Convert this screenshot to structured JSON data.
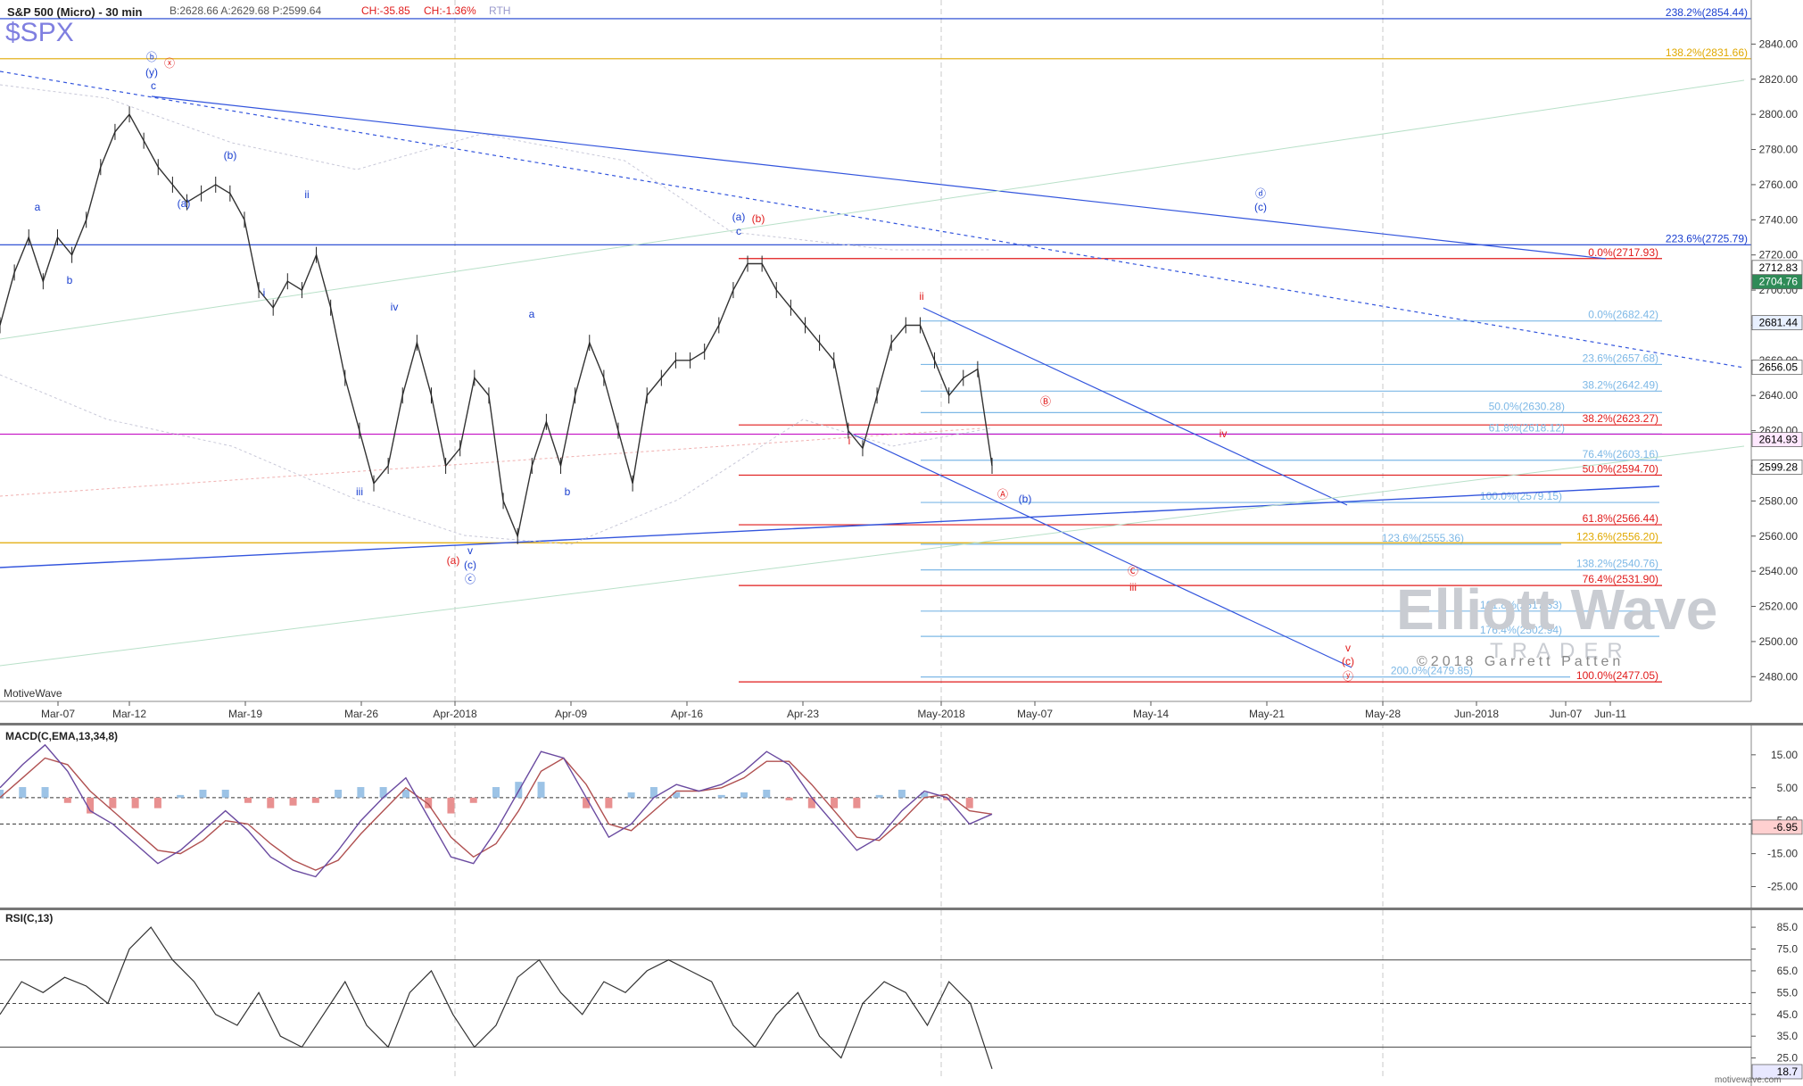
{
  "header": {
    "title": "S&P 500 (Micro) - 30 min",
    "stats": "B:2628.66  A:2629.68  P:2599.64",
    "change_abs": "CH:-35.85",
    "change_pct": "CH:-1.36%",
    "session": "RTH",
    "symbol": "$SPX",
    "footer_left": "MotiveWave",
    "footer_right": "motivewave.com"
  },
  "watermark": {
    "line1": "Elliott Wave",
    "line2": "TRADER",
    "copyright": "©2018 Garrett Patten"
  },
  "colors": {
    "blue": "#1a3fcf",
    "red": "#e01a1a",
    "orange": "#e0a800",
    "magenta": "#c000c0",
    "lightblue": "#7db8e6",
    "axisbg": "#ffffff",
    "text": "#222222"
  },
  "chart_data": [
    {
      "type": "line",
      "title": "S&P 500 (Micro) - 30 min",
      "ylim": [
        2470,
        2860
      ],
      "y_ticks": [
        2480,
        2500,
        2520,
        2540,
        2560,
        2580,
        2600,
        2620,
        2640,
        2660,
        2680,
        2700,
        2720,
        2740,
        2760,
        2780,
        2800,
        2820,
        2840
      ],
      "x_tick_labels": [
        "Mar-07",
        "Mar-12",
        "Mar-19",
        "Mar-26",
        "Apr-2018",
        "Apr-09",
        "Apr-16",
        "Apr-23",
        "May-2018",
        "May-07",
        "May-14",
        "May-21",
        "May-28",
        "Jun-2018",
        "Jun-07",
        "Jun-11"
      ],
      "series": [
        {
          "values": [
            2680,
            2710,
            2730,
            2705,
            2730,
            2720,
            2740,
            2770,
            2790,
            2800,
            2785,
            2770,
            2760,
            2750,
            2755,
            2760,
            2755,
            2740,
            2700,
            2690,
            2705,
            2700,
            2720,
            2690,
            2650,
            2620,
            2590,
            2600,
            2640,
            2670,
            2640,
            2600,
            2610,
            2650,
            2640,
            2580,
            2560,
            2600,
            2625,
            2600,
            2640,
            2670,
            2650,
            2620,
            2590,
            2640,
            2650,
            2660,
            2660,
            2665,
            2680,
            2700,
            2715,
            2715,
            2700,
            2690,
            2680,
            2670,
            2660,
            2620,
            2610,
            2640,
            2670,
            2680,
            2680,
            2660,
            2640,
            2650,
            2655,
            2600
          ]
        }
      ],
      "price_tags": [
        {
          "value": "2712.83",
          "bg": "#ffffff",
          "fg": "#000000"
        },
        {
          "value": "2704.76",
          "bg": "#2e8b57",
          "fg": "#ffffff"
        },
        {
          "value": "2681.44",
          "bg": "#e8f0ff",
          "fg": "#000000"
        },
        {
          "value": "2656.05",
          "bg": "#ffffff",
          "fg": "#000000"
        },
        {
          "value": "2614.93",
          "bg": "#ffe8ff",
          "fg": "#000000"
        },
        {
          "value": "2599.28",
          "bg": "#ffffff",
          "fg": "#000000"
        }
      ],
      "levels": [
        {
          "label": "238.2%(2854.44)",
          "value": 2854.44,
          "color": "#1a3fcf"
        },
        {
          "label": "138.2%(2831.66)",
          "value": 2831.66,
          "color": "#e0a800"
        },
        {
          "label": "223.6%(2725.79)",
          "value": 2725.79,
          "color": "#1a3fcf"
        },
        {
          "label": "0.0%(2717.93)",
          "value": 2717.93,
          "color": "#e01a1a"
        },
        {
          "label": "0.0%(2682.42)",
          "value": 2682.42,
          "color": "#7db8e6"
        },
        {
          "label": "23.6%(2657.68)",
          "value": 2657.68,
          "color": "#7db8e6"
        },
        {
          "label": "38.2%(2642.49)",
          "value": 2642.49,
          "color": "#7db8e6"
        },
        {
          "label": "50.0%(2630.28)",
          "value": 2630.28,
          "color": "#7db8e6"
        },
        {
          "label": "38.2%(2623.27)",
          "value": 2623.27,
          "color": "#e01a1a"
        },
        {
          "label": "61.8%(2618.12)",
          "value": 2618.12,
          "color": "#7db8e6"
        },
        {
          "label": "76.4%(2603.16)",
          "value": 2603.16,
          "color": "#7db8e6"
        },
        {
          "label": "50.0%(2594.70)",
          "value": 2594.7,
          "color": "#e01a1a"
        },
        {
          "label": "100.0%(2579.15)",
          "value": 2579.15,
          "color": "#7db8e6"
        },
        {
          "label": "61.8%(2566.44)",
          "value": 2566.44,
          "color": "#e01a1a"
        },
        {
          "label": "123.6%(2555.36)",
          "value": 2555.36,
          "color": "#7db8e6"
        },
        {
          "label": "123.6%(2556.20)",
          "value": 2556.2,
          "color": "#e0a800"
        },
        {
          "label": "138.2%(2540.76)",
          "value": 2540.76,
          "color": "#7db8e6"
        },
        {
          "label": "76.4%(2531.90)",
          "value": 2531.9,
          "color": "#e01a1a"
        },
        {
          "label": "161.8%(2517.33)",
          "value": 2517.33,
          "color": "#7db8e6"
        },
        {
          "label": "176.4%(2502.94)",
          "value": 2502.94,
          "color": "#7db8e6"
        },
        {
          "label": "200.0%(2479.85)",
          "value": 2479.85,
          "color": "#7db8e6"
        },
        {
          "label": "100.0%(2477.05)",
          "value": 2477.05,
          "color": "#e01a1a"
        }
      ],
      "wave_labels": [
        {
          "text": "ⓑ",
          "color": "#1a3fcf"
        },
        {
          "text": "(y)",
          "color": "#1a3fcf"
        },
        {
          "text": "ⓧ",
          "color": "#e01a1a"
        },
        {
          "text": "c",
          "color": "#1a3fcf"
        },
        {
          "text": "a",
          "color": "#1a3fcf"
        },
        {
          "text": "b",
          "color": "#1a3fcf"
        },
        {
          "text": "(b)",
          "color": "#1a3fcf"
        },
        {
          "text": "(a)",
          "color": "#1a3fcf"
        },
        {
          "text": "ii",
          "color": "#1a3fcf"
        },
        {
          "text": "i",
          "color": "#1a3fcf"
        },
        {
          "text": "iv",
          "color": "#1a3fcf"
        },
        {
          "text": "iii",
          "color": "#1a3fcf"
        },
        {
          "text": "a",
          "color": "#1a3fcf"
        },
        {
          "text": "b",
          "color": "#1a3fcf"
        },
        {
          "text": "v",
          "color": "#1a3fcf"
        },
        {
          "text": "(c)",
          "color": "#1a3fcf"
        },
        {
          "text": "ⓒ",
          "color": "#1a3fcf"
        },
        {
          "text": "(a)",
          "color": "#e01a1a"
        },
        {
          "text": "(a)",
          "color": "#1a3fcf"
        },
        {
          "text": "(b)",
          "color": "#e01a1a"
        },
        {
          "text": "c",
          "color": "#1a3fcf"
        },
        {
          "text": "ii",
          "color": "#e01a1a"
        },
        {
          "text": "i",
          "color": "#e01a1a"
        },
        {
          "text": "Ⓑ",
          "color": "#e01a1a"
        },
        {
          "text": "Ⓐ",
          "color": "#e01a1a"
        },
        {
          "text": "(b)",
          "color": "#1a3fcf"
        },
        {
          "text": "iv",
          "color": "#e01a1a"
        },
        {
          "text": "Ⓒ",
          "color": "#e01a1a"
        },
        {
          "text": "iii",
          "color": "#e01a1a"
        },
        {
          "text": "v",
          "color": "#e01a1a"
        },
        {
          "text": "(c)",
          "color": "#e01a1a"
        },
        {
          "text": "ⓨ",
          "color": "#e01a1a"
        },
        {
          "text": "ⓓ",
          "color": "#1a3fcf"
        },
        {
          "text": "(c)",
          "color": "#1a3fcf"
        }
      ]
    },
    {
      "type": "line",
      "title": "MACD(C,EMA,13,34,8)",
      "ylim": [
        -30,
        22
      ],
      "y_ticks": [
        15.0,
        5.0,
        -5.0,
        -15.0,
        -25.0
      ],
      "y_tick_labels": [
        "15.00",
        "5.00",
        "-5.00",
        "-15.00",
        "-25.00"
      ],
      "current_tag": "-6.95",
      "series": [
        {
          "name": "MACD",
          "values": [
            5,
            12,
            18,
            10,
            -2,
            -6,
            -12,
            -18,
            -14,
            -8,
            -2,
            -8,
            -16,
            -20,
            -22,
            -14,
            -5,
            2,
            8,
            -4,
            -16,
            -18,
            -8,
            4,
            16,
            14,
            2,
            -10,
            -6,
            2,
            6,
            4,
            6,
            10,
            16,
            12,
            2,
            -6,
            -14,
            -10,
            -2,
            4,
            2,
            -6,
            -3
          ]
        },
        {
          "name": "Signal",
          "values": [
            2,
            8,
            14,
            12,
            4,
            -2,
            -8,
            -14,
            -15,
            -11,
            -5,
            -6,
            -12,
            -17,
            -20,
            -17,
            -9,
            -2,
            5,
            0,
            -10,
            -16,
            -12,
            -2,
            10,
            14,
            6,
            -6,
            -8,
            -2,
            4,
            4,
            5,
            8,
            13,
            13,
            6,
            -2,
            -10,
            -11,
            -5,
            2,
            3,
            -2,
            -3
          ]
        }
      ]
    },
    {
      "type": "line",
      "title": "RSI(C,13)",
      "ylim": [
        15,
        92
      ],
      "y_ticks": [
        85.0,
        75.0,
        65.0,
        55.0,
        45.0,
        35.0,
        25.0
      ],
      "y_tick_labels": [
        "85.0",
        "75.0",
        "65.0",
        "55.0",
        "45.0",
        "35.0",
        "25.0"
      ],
      "current_tag": "18.7",
      "series": [
        {
          "name": "RSI",
          "values": [
            45,
            60,
            55,
            62,
            58,
            50,
            75,
            85,
            70,
            60,
            45,
            40,
            55,
            35,
            30,
            45,
            60,
            40,
            30,
            55,
            65,
            45,
            30,
            40,
            62,
            70,
            55,
            45,
            60,
            55,
            65,
            70,
            65,
            60,
            40,
            30,
            45,
            55,
            35,
            25,
            50,
            60,
            55,
            40,
            60,
            50,
            20
          ]
        }
      ]
    }
  ]
}
